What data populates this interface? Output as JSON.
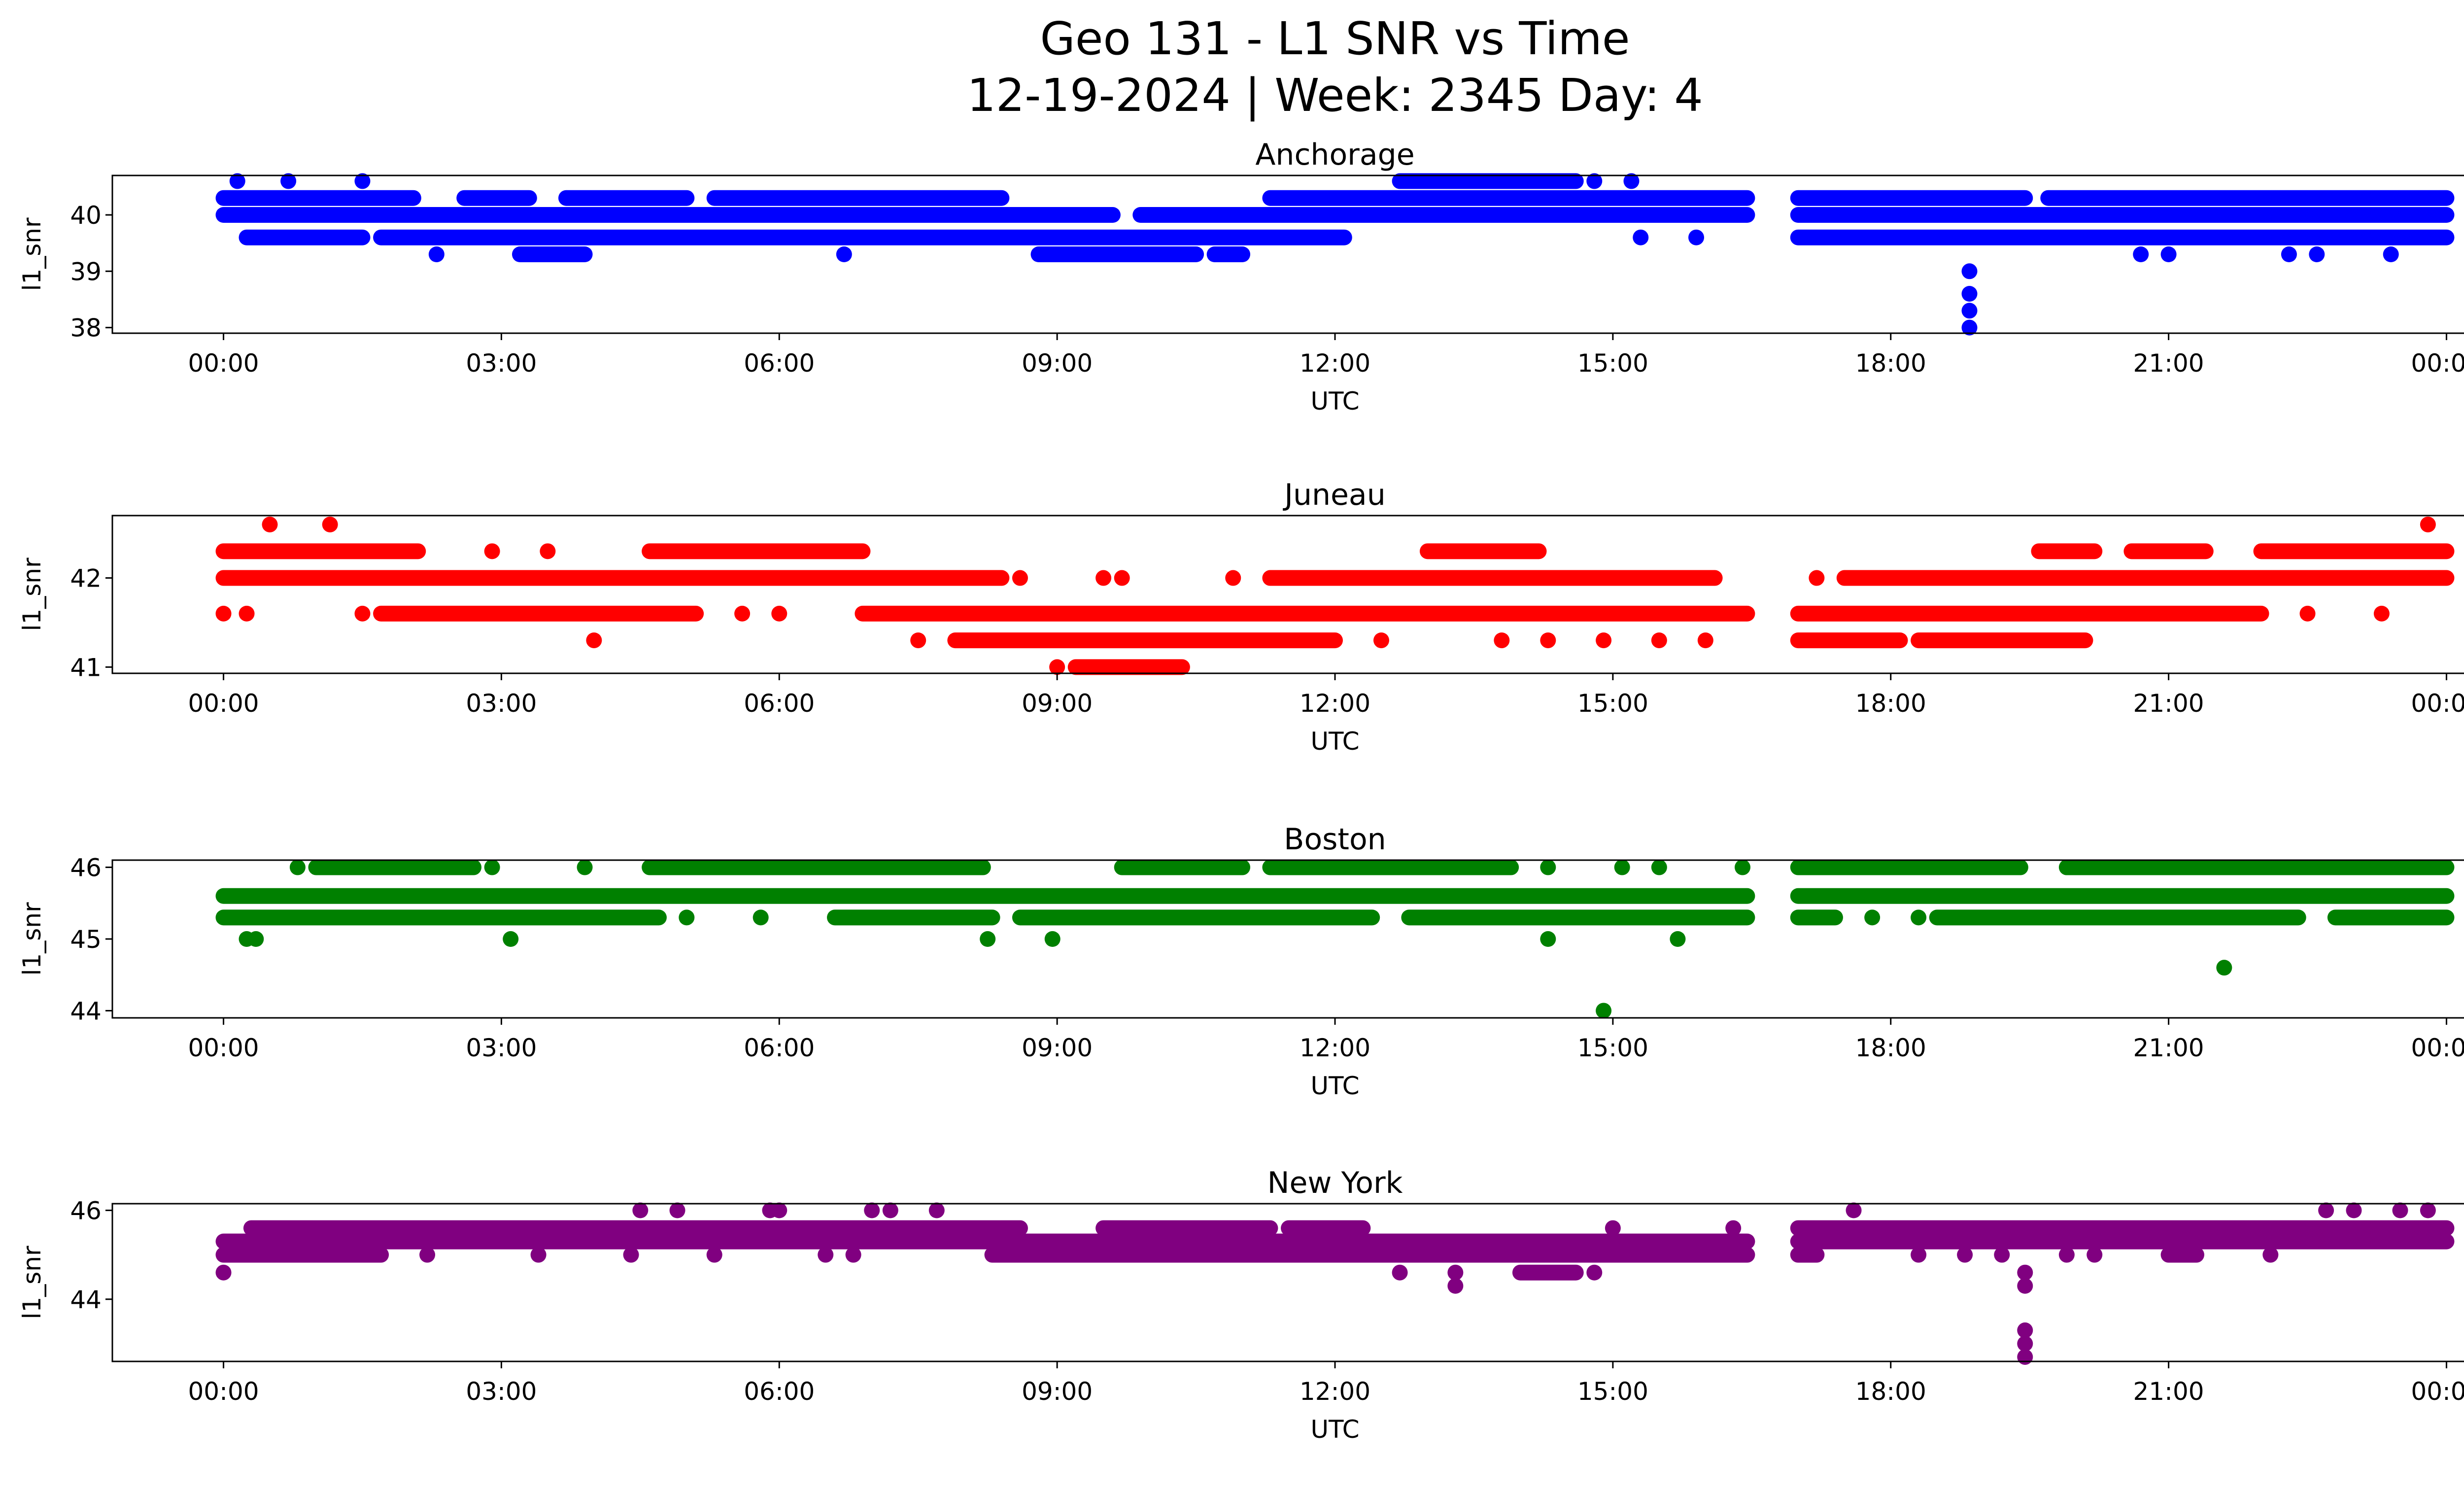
{
  "chart_data": [
    {
      "type": "scatter",
      "title": "Anchorage",
      "xlabel": "UTC",
      "ylabel": "l1_snr",
      "color": "#0000ff",
      "xlim_hours": [
        -1.2,
        25.2
      ],
      "ylim": [
        37.9,
        40.7
      ],
      "yticks": [
        38,
        39,
        40
      ],
      "xticks": [
        "00:00",
        "03:00",
        "06:00",
        "09:00",
        "12:00",
        "15:00",
        "18:00",
        "21:00",
        "00:00"
      ],
      "runs": [
        {
          "y": 40.3,
          "x": [
            [
              0.0,
              2.05
            ],
            [
              2.6,
              3.3
            ],
            [
              3.7,
              5.0
            ],
            [
              5.3,
              8.4
            ],
            [
              11.3,
              16.45
            ],
            [
              17.0,
              19.45
            ],
            [
              19.7,
              24.0
            ]
          ]
        },
        {
          "y": 40.0,
          "x": [
            [
              0.0,
              9.6
            ],
            [
              9.9,
              16.45
            ],
            [
              17.0,
              24.0
            ]
          ]
        },
        {
          "y": 39.6,
          "x": [
            [
              0.25,
              1.5
            ],
            [
              1.7,
              12.1
            ],
            [
              17.0,
              24.0
            ]
          ]
        },
        {
          "y": 39.3,
          "x": [
            [
              3.2,
              3.9
            ],
            [
              8.8,
              10.5
            ],
            [
              10.7,
              11.0
            ]
          ]
        },
        {
          "y": 40.6,
          "x": [
            [
              12.7,
              14.6
            ]
          ]
        }
      ],
      "points": [
        {
          "x": 0.15,
          "y": 40.6
        },
        {
          "x": 0.7,
          "y": 40.6
        },
        {
          "x": 1.5,
          "y": 40.6
        },
        {
          "x": 14.8,
          "y": 40.6
        },
        {
          "x": 15.2,
          "y": 40.6
        },
        {
          "x": 2.3,
          "y": 39.3
        },
        {
          "x": 6.7,
          "y": 39.3
        },
        {
          "x": 20.7,
          "y": 39.3
        },
        {
          "x": 21.0,
          "y": 39.3
        },
        {
          "x": 22.3,
          "y": 39.3
        },
        {
          "x": 22.6,
          "y": 39.3
        },
        {
          "x": 23.4,
          "y": 39.3
        },
        {
          "x": 15.3,
          "y": 39.6
        },
        {
          "x": 15.9,
          "y": 39.6
        },
        {
          "x": 18.85,
          "y": 39.0
        },
        {
          "x": 18.85,
          "y": 38.6
        },
        {
          "x": 18.85,
          "y": 38.3
        },
        {
          "x": 18.85,
          "y": 38.0
        }
      ]
    },
    {
      "type": "scatter",
      "title": "Juneau",
      "xlabel": "UTC",
      "ylabel": "l1_snr",
      "color": "#ff0000",
      "xlim_hours": [
        -1.2,
        25.2
      ],
      "ylim": [
        40.93,
        42.7
      ],
      "yticks": [
        41,
        42
      ],
      "xticks": [
        "00:00",
        "03:00",
        "06:00",
        "09:00",
        "12:00",
        "15:00",
        "18:00",
        "21:00",
        "00:00"
      ],
      "runs": [
        {
          "y": 42.3,
          "x": [
            [
              0.0,
              2.1
            ],
            [
              4.6,
              6.9
            ],
            [
              19.6,
              20.2
            ],
            [
              20.6,
              21.4
            ],
            [
              22.0,
              24.0
            ]
          ]
        },
        {
          "y": 42.0,
          "x": [
            [
              0.0,
              8.4
            ],
            [
              11.3,
              16.1
            ],
            [
              17.5,
              24.0
            ]
          ]
        },
        {
          "y": 41.6,
          "x": [
            [
              1.7,
              5.1
            ],
            [
              6.9,
              16.45
            ],
            [
              17.0,
              22.0
            ]
          ]
        },
        {
          "y": 41.3,
          "x": [
            [
              7.9,
              12.0
            ],
            [
              17.0,
              18.1
            ],
            [
              18.3,
              20.1
            ]
          ]
        },
        {
          "y": 41.0,
          "x": [
            [
              9.2,
              10.35
            ]
          ]
        },
        {
          "y": 42.3,
          "x": [
            [
              13.0,
              14.2
            ]
          ]
        }
      ],
      "points": [
        {
          "x": 0.5,
          "y": 42.6
        },
        {
          "x": 1.15,
          "y": 42.6
        },
        {
          "x": 23.8,
          "y": 42.6
        },
        {
          "x": 0.0,
          "y": 41.6
        },
        {
          "x": 0.25,
          "y": 41.6
        },
        {
          "x": 1.5,
          "y": 41.6
        },
        {
          "x": 5.6,
          "y": 41.6
        },
        {
          "x": 6.0,
          "y": 41.6
        },
        {
          "x": 22.5,
          "y": 41.6
        },
        {
          "x": 23.3,
          "y": 41.6
        },
        {
          "x": 2.9,
          "y": 42.3
        },
        {
          "x": 3.5,
          "y": 42.3
        },
        {
          "x": 8.6,
          "y": 42.0
        },
        {
          "x": 9.5,
          "y": 42.0
        },
        {
          "x": 9.7,
          "y": 42.0
        },
        {
          "x": 10.9,
          "y": 42.0
        },
        {
          "x": 17.2,
          "y": 42.0
        },
        {
          "x": 4.0,
          "y": 41.3
        },
        {
          "x": 7.5,
          "y": 41.3
        },
        {
          "x": 12.5,
          "y": 41.3
        },
        {
          "x": 13.8,
          "y": 41.3
        },
        {
          "x": 14.3,
          "y": 41.3
        },
        {
          "x": 14.9,
          "y": 41.3
        },
        {
          "x": 15.5,
          "y": 41.3
        },
        {
          "x": 16.0,
          "y": 41.3
        },
        {
          "x": 9.0,
          "y": 41.0
        }
      ]
    },
    {
      "type": "scatter",
      "title": "Boston",
      "xlabel": "UTC",
      "ylabel": "l1_snr",
      "color": "#008000",
      "xlim_hours": [
        -1.2,
        25.2
      ],
      "ylim": [
        43.9,
        46.1
      ],
      "yticks": [
        44,
        45,
        46
      ],
      "xticks": [
        "00:00",
        "03:00",
        "06:00",
        "09:00",
        "12:00",
        "15:00",
        "18:00",
        "21:00",
        "00:00"
      ],
      "runs": [
        {
          "y": 46.0,
          "x": [
            [
              1.0,
              2.7
            ],
            [
              4.6,
              8.2
            ],
            [
              9.7,
              11.0
            ],
            [
              11.3,
              13.9
            ],
            [
              17.0,
              19.4
            ],
            [
              19.9,
              24.0
            ]
          ]
        },
        {
          "y": 45.6,
          "x": [
            [
              0.0,
              16.45
            ],
            [
              17.0,
              24.0
            ]
          ]
        },
        {
          "y": 45.3,
          "x": [
            [
              0.0,
              4.7
            ],
            [
              6.6,
              8.3
            ],
            [
              8.6,
              12.4
            ],
            [
              12.8,
              16.45
            ],
            [
              17.0,
              17.4
            ],
            [
              18.5,
              22.4
            ],
            [
              22.8,
              24.0
            ]
          ]
        }
      ],
      "points": [
        {
          "x": 0.8,
          "y": 46.0
        },
        {
          "x": 2.9,
          "y": 46.0
        },
        {
          "x": 3.9,
          "y": 46.0
        },
        {
          "x": 14.3,
          "y": 46.0
        },
        {
          "x": 15.1,
          "y": 46.0
        },
        {
          "x": 15.5,
          "y": 46.0
        },
        {
          "x": 16.4,
          "y": 46.0
        },
        {
          "x": 5.0,
          "y": 45.3
        },
        {
          "x": 5.8,
          "y": 45.3
        },
        {
          "x": 17.8,
          "y": 45.3
        },
        {
          "x": 18.3,
          "y": 45.3
        },
        {
          "x": 0.25,
          "y": 45.0
        },
        {
          "x": 0.35,
          "y": 45.0
        },
        {
          "x": 3.1,
          "y": 45.0
        },
        {
          "x": 8.25,
          "y": 45.0
        },
        {
          "x": 8.95,
          "y": 45.0
        },
        {
          "x": 14.3,
          "y": 45.0
        },
        {
          "x": 15.7,
          "y": 45.0
        },
        {
          "x": 21.6,
          "y": 44.6
        },
        {
          "x": 14.9,
          "y": 44.0
        }
      ]
    },
    {
      "type": "scatter",
      "title": "New York",
      "xlabel": "UTC",
      "ylabel": "l1_snr",
      "color": "#800080",
      "xlim_hours": [
        -1.2,
        25.2
      ],
      "ylim": [
        42.6,
        46.15
      ],
      "yticks": [
        44,
        46
      ],
      "xticks": [
        "00:00",
        "03:00",
        "06:00",
        "09:00",
        "12:00",
        "15:00",
        "18:00",
        "21:00",
        "00:00"
      ],
      "runs": [
        {
          "y": 45.6,
          "x": [
            [
              0.3,
              8.6
            ],
            [
              9.5,
              11.3
            ],
            [
              11.5,
              12.3
            ],
            [
              17.0,
              24.0
            ]
          ]
        },
        {
          "y": 45.3,
          "x": [
            [
              0.0,
              16.45
            ],
            [
              17.0,
              24.0
            ]
          ]
        },
        {
          "y": 45.0,
          "x": [
            [
              0.0,
              1.7
            ],
            [
              8.3,
              16.45
            ],
            [
              17.0,
              17.2
            ],
            [
              21.0,
              21.3
            ]
          ]
        },
        {
          "y": 44.6,
          "x": [
            [
              14.0,
              14.6
            ]
          ]
        }
      ],
      "points": [
        {
          "x": 0.0,
          "y": 44.6
        },
        {
          "x": 12.7,
          "y": 44.6
        },
        {
          "x": 13.3,
          "y": 44.6
        },
        {
          "x": 14.8,
          "y": 44.6
        },
        {
          "x": 13.3,
          "y": 44.3
        },
        {
          "x": 4.5,
          "y": 46.0
        },
        {
          "x": 4.9,
          "y": 46.0
        },
        {
          "x": 5.9,
          "y": 46.0
        },
        {
          "x": 6.0,
          "y": 46.0
        },
        {
          "x": 7.0,
          "y": 46.0
        },
        {
          "x": 7.2,
          "y": 46.0
        },
        {
          "x": 7.7,
          "y": 46.0
        },
        {
          "x": 17.6,
          "y": 46.0
        },
        {
          "x": 22.7,
          "y": 46.0
        },
        {
          "x": 23.0,
          "y": 46.0
        },
        {
          "x": 23.5,
          "y": 46.0
        },
        {
          "x": 23.8,
          "y": 46.0
        },
        {
          "x": 2.2,
          "y": 45.0
        },
        {
          "x": 3.4,
          "y": 45.0
        },
        {
          "x": 4.4,
          "y": 45.0
        },
        {
          "x": 5.3,
          "y": 45.0
        },
        {
          "x": 6.5,
          "y": 45.0
        },
        {
          "x": 6.8,
          "y": 45.0
        },
        {
          "x": 18.3,
          "y": 45.0
        },
        {
          "x": 18.8,
          "y": 45.0
        },
        {
          "x": 19.2,
          "y": 45.0
        },
        {
          "x": 19.9,
          "y": 45.0
        },
        {
          "x": 20.2,
          "y": 45.0
        },
        {
          "x": 22.1,
          "y": 45.0
        },
        {
          "x": 15.0,
          "y": 45.6
        },
        {
          "x": 16.3,
          "y": 45.6
        },
        {
          "x": 19.45,
          "y": 44.6
        },
        {
          "x": 19.45,
          "y": 44.3
        },
        {
          "x": 19.45,
          "y": 43.3
        },
        {
          "x": 19.45,
          "y": 43.0
        },
        {
          "x": 19.45,
          "y": 42.7
        }
      ]
    }
  ],
  "figure": {
    "title_line1": "Geo 131 - L1 SNR vs Time",
    "title_line2": "12-19-2024 | Week: 2345 Day: 4"
  }
}
